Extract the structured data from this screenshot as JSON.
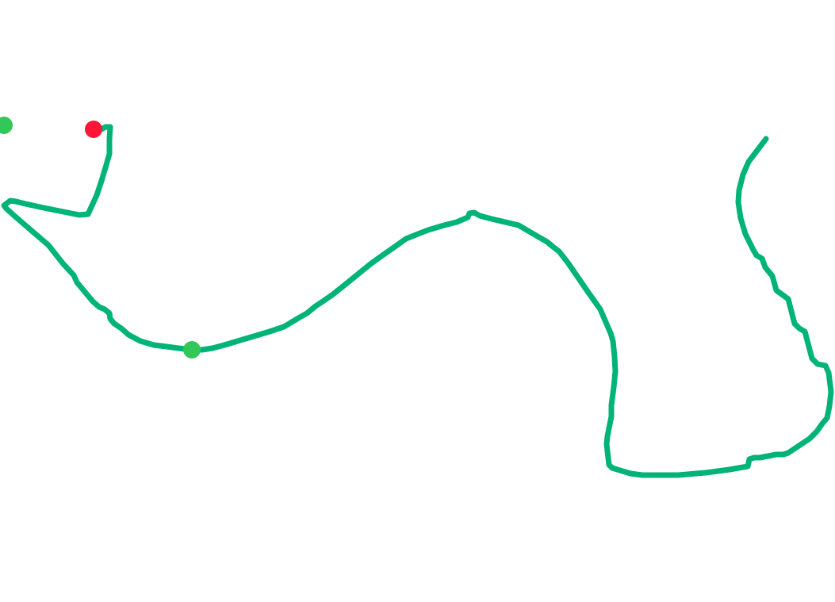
{
  "canvas": {
    "background": "#ffffff",
    "path_color": "#00b377",
    "markers": [
      {
        "name": "start-marker",
        "color": "#33c759"
      },
      {
        "name": "end-marker",
        "color": "#ff1538"
      },
      {
        "name": "checkpoint-marker",
        "color": "#33c759"
      }
    ]
  }
}
